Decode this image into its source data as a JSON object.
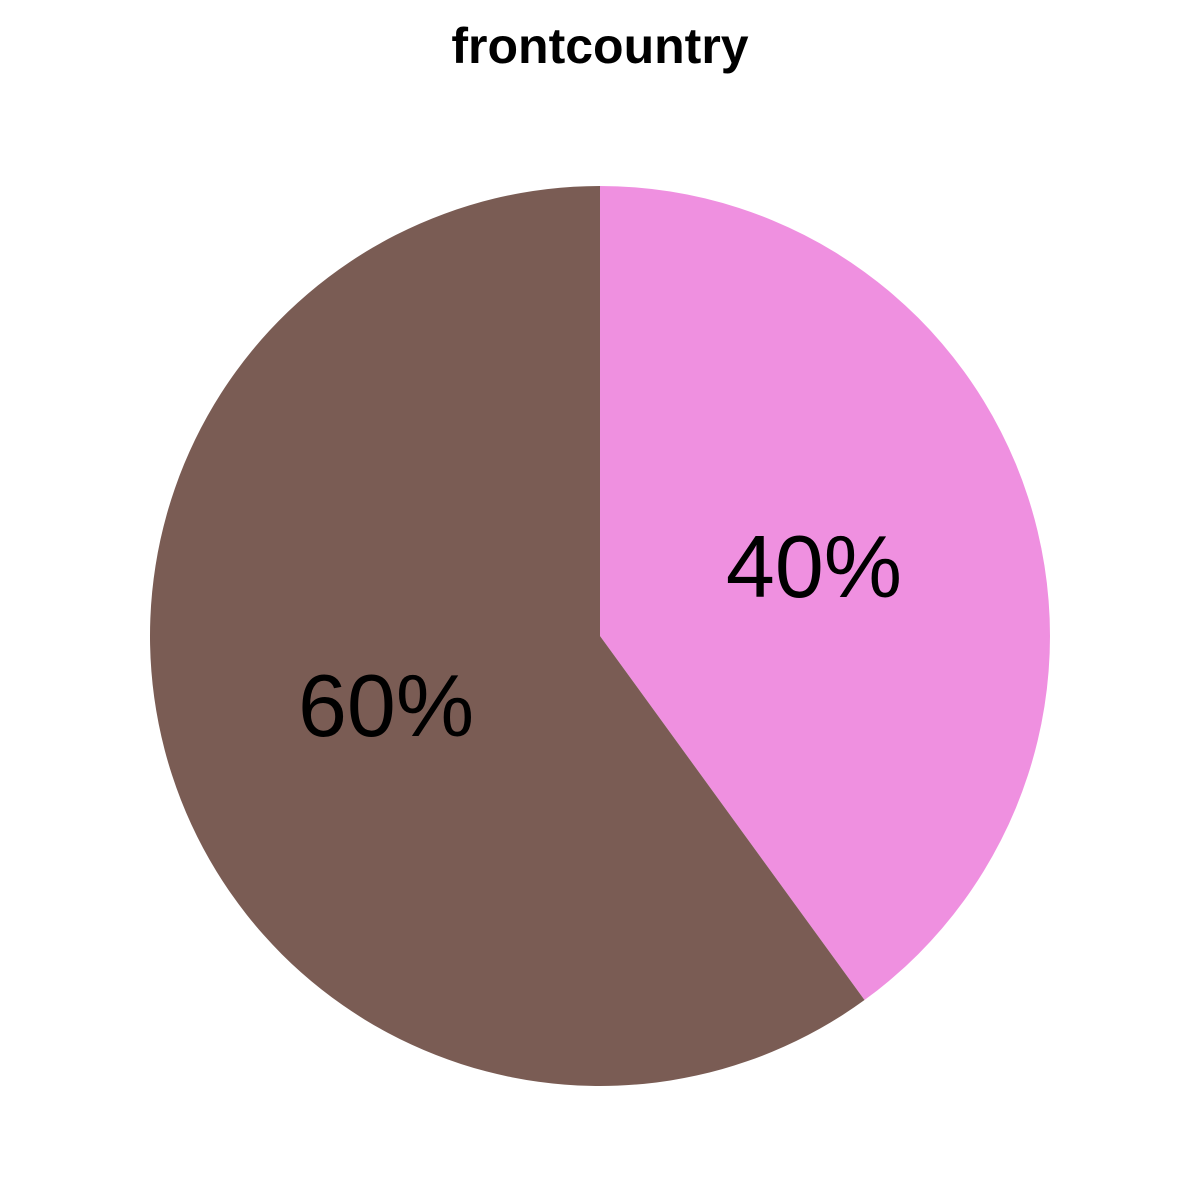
{
  "chart_data": {
    "type": "pie",
    "title": "frontcountry",
    "start": "top",
    "direction": "clockwise",
    "slices": [
      {
        "value": 40,
        "label": "40%",
        "color": "#EF90E0"
      },
      {
        "value": 60,
        "label": "60%",
        "color": "#7A5C54"
      }
    ]
  }
}
